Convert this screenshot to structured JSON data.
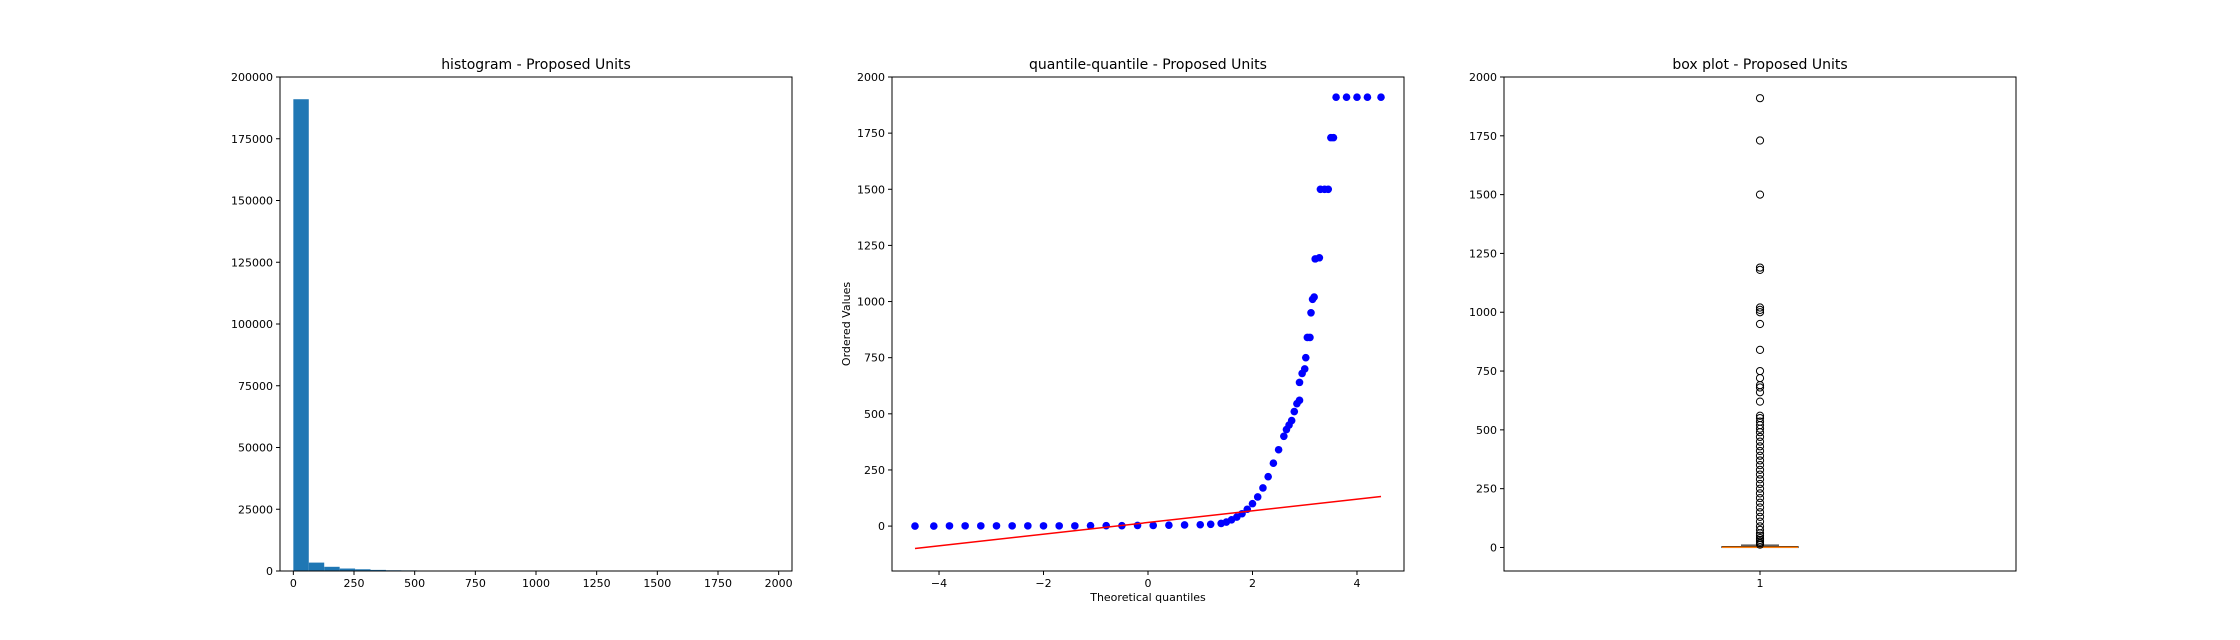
{
  "chart_data": [
    {
      "type": "bar",
      "title": "histogram - Proposed Units",
      "xlabel": "",
      "ylabel": "",
      "xlim": [
        -55,
        2055
      ],
      "ylim": [
        0,
        200000
      ],
      "x_ticks": [
        0,
        250,
        500,
        750,
        1000,
        1250,
        1500,
        1750,
        2000
      ],
      "y_ticks": [
        0,
        25000,
        50000,
        75000,
        100000,
        125000,
        150000,
        175000,
        200000
      ],
      "bin_start": 0,
      "bin_width": 63.6,
      "counts": [
        191000,
        3400,
        1700,
        1000,
        700,
        450,
        300,
        250,
        200,
        120,
        130,
        70,
        40,
        60,
        30,
        60,
        15,
        25,
        20,
        10,
        15,
        10,
        5,
        10,
        0,
        5,
        10,
        5,
        0,
        0
      ],
      "color": "#1f77b4",
      "grid": false
    },
    {
      "type": "scatter",
      "title": "quantile-quantile - Proposed Units",
      "xlabel": "Theoretical quantiles",
      "ylabel": "Ordered Values",
      "xlim": [
        -4.9,
        4.9
      ],
      "ylim": [
        -200,
        2000
      ],
      "x_ticks": [
        -4,
        -2,
        0,
        2,
        4
      ],
      "x_tick_labels": [
        "−4",
        "−2",
        "0",
        "2",
        "4"
      ],
      "y_ticks": [
        0,
        250,
        500,
        750,
        1000,
        1250,
        1500,
        1750,
        2000
      ],
      "series": [
        {
          "kind": "points",
          "color": "#0000ff",
          "points": [
            [
              -4.46,
              0
            ],
            [
              -4.1,
              0
            ],
            [
              -3.8,
              1
            ],
            [
              -3.5,
              1
            ],
            [
              -3.2,
              1
            ],
            [
              -2.9,
              1
            ],
            [
              -2.6,
              1
            ],
            [
              -2.3,
              1
            ],
            [
              -2.0,
              1
            ],
            [
              -1.7,
              1
            ],
            [
              -1.4,
              1
            ],
            [
              -1.1,
              2
            ],
            [
              -0.8,
              2
            ],
            [
              -0.5,
              2
            ],
            [
              -0.2,
              3
            ],
            [
              0.1,
              3
            ],
            [
              0.4,
              4
            ],
            [
              0.7,
              5
            ],
            [
              1.0,
              6
            ],
            [
              1.2,
              8
            ],
            [
              1.4,
              12
            ],
            [
              1.5,
              18
            ],
            [
              1.6,
              28
            ],
            [
              1.7,
              40
            ],
            [
              1.8,
              55
            ],
            [
              1.9,
              75
            ],
            [
              2.0,
              100
            ],
            [
              2.1,
              130
            ],
            [
              2.2,
              170
            ],
            [
              2.3,
              220
            ],
            [
              2.4,
              280
            ],
            [
              2.5,
              340
            ],
            [
              2.6,
              400
            ],
            [
              2.65,
              430
            ],
            [
              2.7,
              450
            ],
            [
              2.75,
              470
            ],
            [
              2.8,
              510
            ],
            [
              2.85,
              545
            ],
            [
              2.9,
              560
            ],
            [
              2.9,
              640
            ],
            [
              2.95,
              680
            ],
            [
              3.0,
              700
            ],
            [
              3.02,
              750
            ],
            [
              3.05,
              840
            ],
            [
              3.1,
              840
            ],
            [
              3.12,
              950
            ],
            [
              3.15,
              1010
            ],
            [
              3.18,
              1020
            ],
            [
              3.2,
              1190
            ],
            [
              3.28,
              1195
            ],
            [
              3.3,
              1500
            ],
            [
              3.38,
              1500
            ],
            [
              3.45,
              1500
            ],
            [
              3.5,
              1730
            ],
            [
              3.55,
              1730
            ],
            [
              3.6,
              1910
            ],
            [
              3.8,
              1910
            ],
            [
              4.0,
              1910
            ],
            [
              4.2,
              1910
            ],
            [
              4.46,
              1910
            ]
          ]
        },
        {
          "kind": "line",
          "color": "#ff0000",
          "points": [
            [
              -4.46,
              -100
            ],
            [
              4.46,
              132
            ]
          ]
        }
      ],
      "grid": false
    },
    {
      "type": "box",
      "title": "box plot - Proposed Units",
      "xlabel": "",
      "ylabel": "",
      "categories": [
        "1"
      ],
      "ylim": [
        -100,
        2000
      ],
      "y_ticks": [
        0,
        250,
        500,
        750,
        1000,
        1250,
        1500,
        1750,
        2000
      ],
      "q1": 0,
      "median": 1,
      "q3": 4,
      "whisker_low": 0,
      "whisker_high": 10,
      "median_color": "#ff7f0e",
      "outliers": [
        12,
        18,
        25,
        32,
        40,
        50,
        60,
        75,
        90,
        110,
        130,
        150,
        170,
        190,
        210,
        230,
        250,
        270,
        290,
        310,
        330,
        350,
        370,
        390,
        410,
        430,
        450,
        470,
        490,
        505,
        520,
        535,
        550,
        560,
        620,
        660,
        680,
        690,
        720,
        750,
        840,
        950,
        1000,
        1010,
        1020,
        1180,
        1190,
        1500,
        1730,
        1910
      ],
      "grid": false
    }
  ]
}
